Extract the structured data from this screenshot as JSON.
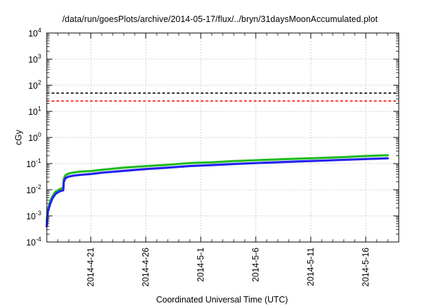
{
  "chart_data": {
    "type": "line",
    "title": "/data/run/goesPlots/archive/2014-05-17/flux/../bryn/31daysMoonAccumulated.plot",
    "xlabel": "Coordinated Universal Time (UTC)",
    "ylabel": "cGy",
    "x_range": [
      "2014-04-17",
      "2014-05-19"
    ],
    "x_ticks": [
      "2014-4-21",
      "2014-4-26",
      "2014-5-1",
      "2014-5-6",
      "2014-5-11",
      "2014-5-16"
    ],
    "x_tick_days": [
      4,
      9,
      14,
      19,
      24,
      29
    ],
    "ylim": [
      0.0001,
      10000
    ],
    "y_scale": "log",
    "y_ticks": [
      {
        "value": 0.0001,
        "base": "10",
        "exp": "-4"
      },
      {
        "value": 0.001,
        "base": "10",
        "exp": "-3"
      },
      {
        "value": 0.01,
        "base": "10",
        "exp": "-2"
      },
      {
        "value": 0.1,
        "base": "10",
        "exp": "-1"
      },
      {
        "value": 1,
        "base": "10",
        "exp": "0"
      },
      {
        "value": 10,
        "base": "10",
        "exp": "1"
      },
      {
        "value": 100,
        "base": "10",
        "exp": "2"
      },
      {
        "value": 1000,
        "base": "10",
        "exp": "3"
      },
      {
        "value": 10000,
        "base": "10",
        "exp": "4"
      }
    ],
    "grid": true,
    "reference_lines": [
      {
        "y": 50,
        "color": "#000000",
        "style": "dashed"
      },
      {
        "y": 25,
        "color": "#ff0000",
        "style": "dashed"
      }
    ],
    "series": [
      {
        "color": "#22bb22",
        "x": [
          0,
          0.1,
          0.3,
          0.5,
          0.8,
          1.2,
          1.5,
          1.55,
          1.7,
          2.0,
          2.5,
          3.0,
          4.0,
          5.0,
          7.0,
          9.0,
          11.0,
          13.0,
          15.0,
          17.0,
          19.0,
          21.0,
          23.0,
          25.0,
          27.0,
          29.0,
          31.0
        ],
        "y": [
          0.0006,
          0.0018,
          0.0035,
          0.0055,
          0.0085,
          0.0105,
          0.012,
          0.026,
          0.036,
          0.042,
          0.046,
          0.049,
          0.052,
          0.058,
          0.07,
          0.08,
          0.09,
          0.105,
          0.112,
          0.125,
          0.135,
          0.145,
          0.155,
          0.165,
          0.178,
          0.195,
          0.21
        ]
      },
      {
        "color": "#2222ee",
        "x": [
          0,
          0.1,
          0.3,
          0.5,
          0.8,
          1.2,
          1.5,
          1.55,
          1.7,
          2.0,
          2.5,
          3.0,
          4.0,
          5.0,
          7.0,
          9.0,
          11.0,
          13.0,
          15.0,
          17.0,
          19.0,
          21.0,
          23.0,
          25.0,
          27.0,
          29.0,
          31.0
        ],
        "y": [
          0.0004,
          0.0014,
          0.0028,
          0.0045,
          0.007,
          0.0088,
          0.0095,
          0.02,
          0.028,
          0.032,
          0.035,
          0.037,
          0.04,
          0.045,
          0.053,
          0.062,
          0.07,
          0.081,
          0.088,
          0.097,
          0.105,
          0.113,
          0.122,
          0.13,
          0.14,
          0.15,
          0.16
        ]
      }
    ]
  }
}
